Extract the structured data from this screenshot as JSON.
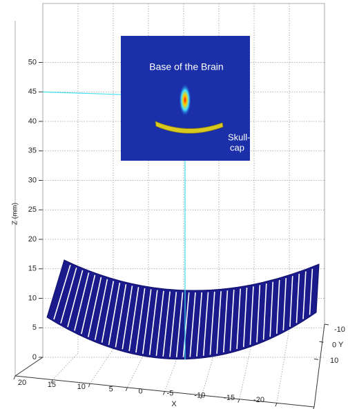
{
  "chart_data": {
    "type": "surface3d",
    "zlabel": "Z (mm)",
    "xlabel": "X",
    "ylabel": "Y",
    "xlim": [
      20,
      -20
    ],
    "xticks": [
      20,
      15,
      10,
      5,
      0,
      -5,
      -10,
      -15,
      -20
    ],
    "ylim": [
      -10,
      10
    ],
    "yticks": [
      -10,
      0,
      10
    ],
    "zlim": [
      0,
      60
    ],
    "zticks": [
      0,
      5,
      10,
      15,
      20,
      25,
      30,
      35,
      40,
      45,
      50
    ],
    "grid": true,
    "focus": {
      "z": 45
    },
    "inset": {
      "title": "Base of the Brain",
      "label_lines": [
        "Skull-",
        "cap"
      ]
    }
  }
}
